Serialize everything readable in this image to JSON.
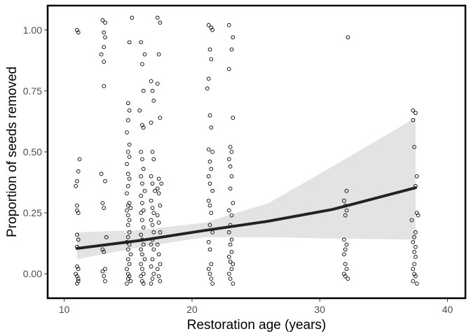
{
  "chart_data": {
    "type": "scatter",
    "title": "",
    "xlabel": "Restoration age (years)",
    "ylabel": "Proportion of seeds removed",
    "xlim": [
      8.7,
      41.4
    ],
    "ylim": [
      -0.1,
      1.1
    ],
    "x_ticks": [
      10,
      20,
      30,
      40
    ],
    "y_ticks": [
      0.0,
      0.25,
      0.5,
      0.75,
      1.0
    ],
    "x_tick_labels": [
      "10",
      "20",
      "30",
      "40"
    ],
    "y_tick_labels": [
      "0.00",
      "0.25",
      "0.50",
      "0.75",
      "1.00"
    ],
    "grid": false,
    "legend": "none",
    "colors": {
      "points": "#000000",
      "trend_line": "#222222",
      "ribbon": "#e3e3e3",
      "frame": "#000000"
    },
    "points": [
      {
        "x": 11.0,
        "y": 1.0
      },
      {
        "x": 11.1,
        "y": 0.99
      },
      {
        "x": 11.2,
        "y": 0.47
      },
      {
        "x": 11.1,
        "y": 0.42
      },
      {
        "x": 11.0,
        "y": 0.38
      },
      {
        "x": 10.9,
        "y": 0.36
      },
      {
        "x": 11.0,
        "y": 0.28
      },
      {
        "x": 11.0,
        "y": 0.26
      },
      {
        "x": 11.1,
        "y": 0.25
      },
      {
        "x": 11.0,
        "y": 0.16
      },
      {
        "x": 11.1,
        "y": 0.14
      },
      {
        "x": 11.0,
        "y": 0.11
      },
      {
        "x": 11.0,
        "y": 0.03
      },
      {
        "x": 11.1,
        "y": 0.02
      },
      {
        "x": 10.9,
        "y": 0.0
      },
      {
        "x": 11.0,
        "y": -0.01
      },
      {
        "x": 11.1,
        "y": -0.02
      },
      {
        "x": 11.0,
        "y": -0.04
      },
      {
        "x": 11.1,
        "y": -0.03
      },
      {
        "x": 13.0,
        "y": 1.04
      },
      {
        "x": 13.2,
        "y": 1.03
      },
      {
        "x": 13.1,
        "y": 0.99
      },
      {
        "x": 13.2,
        "y": 0.97
      },
      {
        "x": 13.1,
        "y": 0.93
      },
      {
        "x": 12.9,
        "y": 0.9
      },
      {
        "x": 13.1,
        "y": 0.87
      },
      {
        "x": 13.1,
        "y": 0.77
      },
      {
        "x": 12.9,
        "y": 0.41
      },
      {
        "x": 13.2,
        "y": 0.38
      },
      {
        "x": 13.0,
        "y": 0.29
      },
      {
        "x": 13.1,
        "y": 0.27
      },
      {
        "x": 13.3,
        "y": 0.15
      },
      {
        "x": 13.0,
        "y": 0.1
      },
      {
        "x": 13.1,
        "y": 0.09
      },
      {
        "x": 13.2,
        "y": 0.02
      },
      {
        "x": 13.0,
        "y": 0.01
      },
      {
        "x": 13.1,
        "y": -0.01
      },
      {
        "x": 13.2,
        "y": -0.03
      },
      {
        "x": 15.3,
        "y": 1.05
      },
      {
        "x": 15.1,
        "y": 0.95
      },
      {
        "x": 15.0,
        "y": 0.7
      },
      {
        "x": 15.1,
        "y": 0.67
      },
      {
        "x": 15.0,
        "y": 0.63
      },
      {
        "x": 14.9,
        "y": 0.58
      },
      {
        "x": 15.1,
        "y": 0.53
      },
      {
        "x": 15.0,
        "y": 0.5
      },
      {
        "x": 15.1,
        "y": 0.48
      },
      {
        "x": 14.9,
        "y": 0.45
      },
      {
        "x": 15.0,
        "y": 0.41
      },
      {
        "x": 15.1,
        "y": 0.39
      },
      {
        "x": 15.0,
        "y": 0.36
      },
      {
        "x": 14.9,
        "y": 0.33
      },
      {
        "x": 15.1,
        "y": 0.29
      },
      {
        "x": 15.0,
        "y": 0.28
      },
      {
        "x": 15.2,
        "y": 0.27
      },
      {
        "x": 14.9,
        "y": 0.26
      },
      {
        "x": 15.0,
        "y": 0.24
      },
      {
        "x": 15.1,
        "y": 0.22
      },
      {
        "x": 15.0,
        "y": 0.2
      },
      {
        "x": 15.1,
        "y": 0.17
      },
      {
        "x": 15.0,
        "y": 0.15
      },
      {
        "x": 14.9,
        "y": 0.13
      },
      {
        "x": 15.1,
        "y": 0.12
      },
      {
        "x": 15.0,
        "y": 0.1
      },
      {
        "x": 15.2,
        "y": 0.08
      },
      {
        "x": 15.0,
        "y": 0.06
      },
      {
        "x": 15.1,
        "y": 0.04
      },
      {
        "x": 14.9,
        "y": 0.02
      },
      {
        "x": 15.0,
        "y": 0.0
      },
      {
        "x": 15.1,
        "y": -0.01
      },
      {
        "x": 15.0,
        "y": -0.02
      },
      {
        "x": 14.9,
        "y": -0.04
      },
      {
        "x": 15.2,
        "y": -0.03
      },
      {
        "x": 16.0,
        "y": 0.95
      },
      {
        "x": 16.3,
        "y": 0.9
      },
      {
        "x": 16.1,
        "y": 0.86
      },
      {
        "x": 16.2,
        "y": 0.75
      },
      {
        "x": 15.9,
        "y": 0.67
      },
      {
        "x": 16.1,
        "y": 0.61
      },
      {
        "x": 16.2,
        "y": 0.6
      },
      {
        "x": 16.0,
        "y": 0.5
      },
      {
        "x": 16.1,
        "y": 0.47
      },
      {
        "x": 16.2,
        "y": 0.43
      },
      {
        "x": 16.0,
        "y": 0.4
      },
      {
        "x": 16.1,
        "y": 0.37
      },
      {
        "x": 16.3,
        "y": 0.34
      },
      {
        "x": 16.0,
        "y": 0.32
      },
      {
        "x": 16.1,
        "y": 0.29
      },
      {
        "x": 16.2,
        "y": 0.26
      },
      {
        "x": 16.0,
        "y": 0.25
      },
      {
        "x": 16.1,
        "y": 0.22
      },
      {
        "x": 16.2,
        "y": 0.19
      },
      {
        "x": 16.0,
        "y": 0.16
      },
      {
        "x": 16.1,
        "y": 0.14
      },
      {
        "x": 16.2,
        "y": 0.12
      },
      {
        "x": 16.0,
        "y": 0.1
      },
      {
        "x": 16.1,
        "y": 0.08
      },
      {
        "x": 16.3,
        "y": 0.06
      },
      {
        "x": 16.0,
        "y": 0.04
      },
      {
        "x": 16.1,
        "y": 0.02
      },
      {
        "x": 16.2,
        "y": 0.0
      },
      {
        "x": 16.0,
        "y": -0.01
      },
      {
        "x": 16.1,
        "y": -0.03
      },
      {
        "x": 16.2,
        "y": -0.04
      },
      {
        "x": 16.8,
        "y": 0.79
      },
      {
        "x": 16.9,
        "y": 0.75
      },
      {
        "x": 17.0,
        "y": 0.71
      },
      {
        "x": 16.8,
        "y": 0.62
      },
      {
        "x": 16.9,
        "y": 0.5
      },
      {
        "x": 17.0,
        "y": 0.47
      },
      {
        "x": 16.8,
        "y": 0.4
      },
      {
        "x": 16.9,
        "y": 0.37
      },
      {
        "x": 17.1,
        "y": 0.34
      },
      {
        "x": 16.8,
        "y": 0.3
      },
      {
        "x": 16.9,
        "y": 0.27
      },
      {
        "x": 17.0,
        "y": 0.25
      },
      {
        "x": 16.8,
        "y": 0.22
      },
      {
        "x": 16.9,
        "y": 0.2
      },
      {
        "x": 17.0,
        "y": 0.17
      },
      {
        "x": 16.9,
        "y": 0.14
      },
      {
        "x": 16.8,
        "y": 0.12
      },
      {
        "x": 17.0,
        "y": 0.1
      },
      {
        "x": 16.9,
        "y": 0.06
      },
      {
        "x": 16.8,
        "y": 0.03
      },
      {
        "x": 17.0,
        "y": 0.0
      },
      {
        "x": 16.9,
        "y": -0.02
      },
      {
        "x": 16.8,
        "y": -0.04
      },
      {
        "x": 17.3,
        "y": 1.05
      },
      {
        "x": 17.5,
        "y": 1.03
      },
      {
        "x": 17.4,
        "y": 0.9
      },
      {
        "x": 17.3,
        "y": 0.78
      },
      {
        "x": 17.5,
        "y": 0.64
      },
      {
        "x": 17.4,
        "y": 0.39
      },
      {
        "x": 17.6,
        "y": 0.37
      },
      {
        "x": 17.3,
        "y": 0.35
      },
      {
        "x": 17.4,
        "y": 0.33
      },
      {
        "x": 17.5,
        "y": 0.28
      },
      {
        "x": 17.3,
        "y": 0.24
      },
      {
        "x": 17.4,
        "y": 0.21
      },
      {
        "x": 17.5,
        "y": 0.17
      },
      {
        "x": 17.3,
        "y": 0.12
      },
      {
        "x": 17.4,
        "y": 0.08
      },
      {
        "x": 17.5,
        "y": 0.04
      },
      {
        "x": 17.3,
        "y": 0.02
      },
      {
        "x": 17.4,
        "y": -0.01
      },
      {
        "x": 17.5,
        "y": -0.03
      },
      {
        "x": 21.3,
        "y": 1.02
      },
      {
        "x": 21.5,
        "y": 1.01
      },
      {
        "x": 21.6,
        "y": 1.0
      },
      {
        "x": 21.4,
        "y": 0.92
      },
      {
        "x": 21.5,
        "y": 0.88
      },
      {
        "x": 21.3,
        "y": 0.8
      },
      {
        "x": 21.2,
        "y": 0.76
      },
      {
        "x": 21.4,
        "y": 0.65
      },
      {
        "x": 21.5,
        "y": 0.6
      },
      {
        "x": 21.3,
        "y": 0.51
      },
      {
        "x": 21.6,
        "y": 0.5
      },
      {
        "x": 21.4,
        "y": 0.46
      },
      {
        "x": 21.5,
        "y": 0.43
      },
      {
        "x": 21.3,
        "y": 0.4
      },
      {
        "x": 21.4,
        "y": 0.37
      },
      {
        "x": 21.6,
        "y": 0.34
      },
      {
        "x": 21.3,
        "y": 0.3
      },
      {
        "x": 21.4,
        "y": 0.28
      },
      {
        "x": 21.5,
        "y": 0.25
      },
      {
        "x": 21.4,
        "y": 0.2
      },
      {
        "x": 21.6,
        "y": 0.17
      },
      {
        "x": 21.3,
        "y": 0.13
      },
      {
        "x": 21.4,
        "y": 0.1
      },
      {
        "x": 21.5,
        "y": 0.04
      },
      {
        "x": 21.3,
        "y": 0.02
      },
      {
        "x": 21.4,
        "y": 0.0
      },
      {
        "x": 21.5,
        "y": -0.02
      },
      {
        "x": 21.6,
        "y": -0.04
      },
      {
        "x": 22.9,
        "y": 1.02
      },
      {
        "x": 23.2,
        "y": 0.97
      },
      {
        "x": 23.1,
        "y": 0.92
      },
      {
        "x": 22.9,
        "y": 0.84
      },
      {
        "x": 23.2,
        "y": 0.64
      },
      {
        "x": 23.0,
        "y": 0.52
      },
      {
        "x": 23.1,
        "y": 0.5
      },
      {
        "x": 22.9,
        "y": 0.47
      },
      {
        "x": 23.0,
        "y": 0.44
      },
      {
        "x": 23.1,
        "y": 0.4
      },
      {
        "x": 23.0,
        "y": 0.35
      },
      {
        "x": 23.2,
        "y": 0.29
      },
      {
        "x": 22.9,
        "y": 0.26
      },
      {
        "x": 23.1,
        "y": 0.24
      },
      {
        "x": 23.0,
        "y": 0.2
      },
      {
        "x": 22.9,
        "y": 0.17
      },
      {
        "x": 23.1,
        "y": 0.14
      },
      {
        "x": 23.0,
        "y": 0.12
      },
      {
        "x": 23.1,
        "y": 0.09
      },
      {
        "x": 22.9,
        "y": 0.07
      },
      {
        "x": 23.0,
        "y": 0.05
      },
      {
        "x": 23.2,
        "y": 0.04
      },
      {
        "x": 23.1,
        "y": 0.02
      },
      {
        "x": 22.9,
        "y": 0.0
      },
      {
        "x": 23.0,
        "y": -0.02
      },
      {
        "x": 23.2,
        "y": -0.04
      },
      {
        "x": 32.2,
        "y": 0.97
      },
      {
        "x": 32.1,
        "y": 0.34
      },
      {
        "x": 31.9,
        "y": 0.3
      },
      {
        "x": 32.0,
        "y": 0.28
      },
      {
        "x": 32.1,
        "y": 0.26
      },
      {
        "x": 32.0,
        "y": 0.24
      },
      {
        "x": 31.9,
        "y": 0.14
      },
      {
        "x": 32.1,
        "y": 0.12
      },
      {
        "x": 32.0,
        "y": 0.1
      },
      {
        "x": 31.9,
        "y": 0.08
      },
      {
        "x": 32.0,
        "y": 0.04
      },
      {
        "x": 32.1,
        "y": 0.02
      },
      {
        "x": 31.9,
        "y": 0.0
      },
      {
        "x": 32.0,
        "y": -0.01
      },
      {
        "x": 32.2,
        "y": -0.02
      },
      {
        "x": 37.3,
        "y": 0.67
      },
      {
        "x": 37.5,
        "y": 0.66
      },
      {
        "x": 37.3,
        "y": 0.63
      },
      {
        "x": 37.4,
        "y": 0.52
      },
      {
        "x": 37.6,
        "y": 0.4
      },
      {
        "x": 37.5,
        "y": 0.36
      },
      {
        "x": 37.6,
        "y": 0.25
      },
      {
        "x": 37.7,
        "y": 0.24
      },
      {
        "x": 37.2,
        "y": 0.22
      },
      {
        "x": 37.5,
        "y": 0.17
      },
      {
        "x": 37.4,
        "y": 0.15
      },
      {
        "x": 37.3,
        "y": 0.13
      },
      {
        "x": 37.5,
        "y": 0.11
      },
      {
        "x": 37.4,
        "y": 0.09
      },
      {
        "x": 37.5,
        "y": 0.07
      },
      {
        "x": 37.4,
        "y": 0.04
      },
      {
        "x": 37.3,
        "y": 0.02
      },
      {
        "x": 37.4,
        "y": 0.0
      },
      {
        "x": 37.5,
        "y": -0.01
      },
      {
        "x": 37.3,
        "y": -0.03
      },
      {
        "x": 37.6,
        "y": -0.04
      }
    ],
    "trend_line": [
      {
        "x": 11,
        "y": 0.104
      },
      {
        "x": 16,
        "y": 0.137
      },
      {
        "x": 21,
        "y": 0.178
      },
      {
        "x": 26,
        "y": 0.216
      },
      {
        "x": 31,
        "y": 0.264
      },
      {
        "x": 37.5,
        "y": 0.353
      }
    ],
    "confidence_band": [
      {
        "x": 11,
        "lower": 0.06,
        "upper": 0.17
      },
      {
        "x": 16,
        "lower": 0.11,
        "upper": 0.18
      },
      {
        "x": 21,
        "lower": 0.15,
        "upper": 0.21
      },
      {
        "x": 26,
        "lower": 0.15,
        "upper": 0.29
      },
      {
        "x": 31,
        "lower": 0.145,
        "upper": 0.44
      },
      {
        "x": 37.5,
        "lower": 0.14,
        "upper": 0.64
      }
    ]
  }
}
